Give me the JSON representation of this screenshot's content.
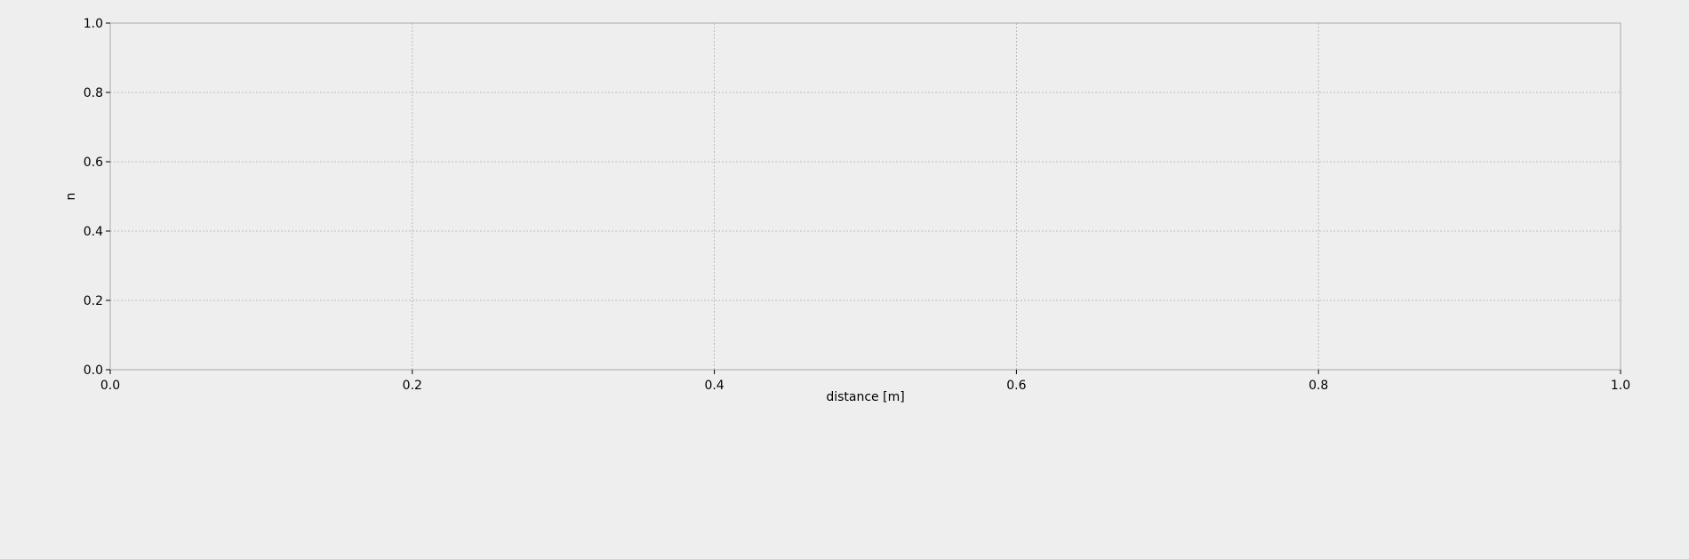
{
  "chart_data": {
    "type": "line",
    "title": "",
    "xlabel": "distance [m]",
    "ylabel": "n",
    "xlim": [
      0.0,
      1.0
    ],
    "ylim": [
      0.0,
      1.0
    ],
    "xticks": [
      0.0,
      0.2,
      0.4,
      0.6,
      0.8,
      1.0
    ],
    "yticks": [
      0.0,
      0.2,
      0.4,
      0.6,
      0.8,
      1.0
    ],
    "xtick_labels": [
      "0.0",
      "0.2",
      "0.4",
      "0.6",
      "0.8",
      "1.0"
    ],
    "ytick_labels": [
      "0.0",
      "0.2",
      "0.4",
      "0.6",
      "0.8",
      "1.0"
    ],
    "grid": true,
    "series": [],
    "colors": {
      "background": "#eeeeee",
      "axes_background": "#eeeeee",
      "spine": "#aaaaaa",
      "grid": "#b0b0b0",
      "text": "#000000"
    }
  }
}
